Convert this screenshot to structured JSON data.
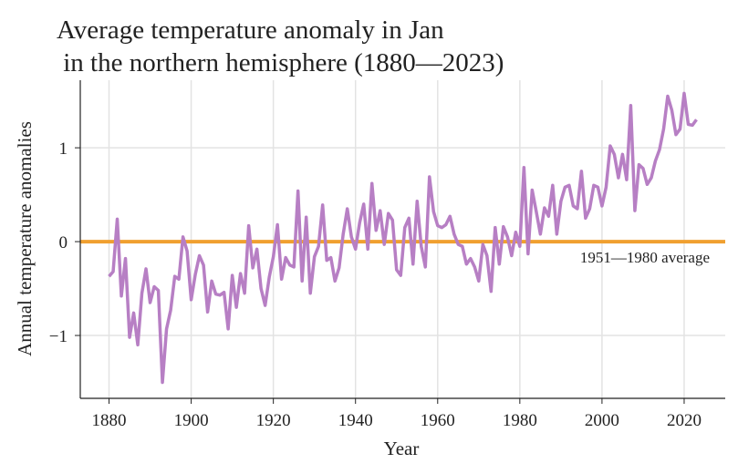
{
  "chart_data": {
    "type": "line",
    "title_lines": [
      "Average temperature anomaly in Jan",
      " in the northern hemisphere (1880—2023)"
    ],
    "xlabel": "Year",
    "ylabel": "Annual temperature anomalies",
    "xlim": [
      1873,
      2030
    ],
    "ylim": [
      -1.67,
      1.72
    ],
    "xticks": [
      1880,
      1900,
      1920,
      1940,
      1960,
      1980,
      2000,
      2020
    ],
    "yticks": [
      -1,
      0,
      1
    ],
    "ytick_labels": [
      "−1",
      "0",
      "1"
    ],
    "grid": true,
    "series": [
      {
        "color": "#b77fc4",
        "x_start": 1880,
        "x_end": 2023,
        "values": [
          -0.37,
          -0.32,
          0.24,
          -0.58,
          -0.18,
          -1.02,
          -0.76,
          -1.1,
          -0.55,
          -0.29,
          -0.65,
          -0.48,
          -0.52,
          -1.5,
          -0.93,
          -0.73,
          -0.37,
          -0.4,
          0.05,
          -0.1,
          -0.62,
          -0.35,
          -0.15,
          -0.25,
          -0.75,
          -0.42,
          -0.56,
          -0.57,
          -0.54,
          -0.93,
          -0.36,
          -0.7,
          -0.34,
          -0.55,
          0.17,
          -0.28,
          -0.08,
          -0.5,
          -0.68,
          -0.38,
          -0.16,
          0.18,
          -0.4,
          -0.17,
          -0.25,
          -0.27,
          0.54,
          -0.42,
          0.26,
          -0.55,
          -0.16,
          -0.05,
          0.39,
          -0.2,
          -0.17,
          -0.42,
          -0.28,
          0.08,
          0.35,
          0.05,
          -0.08,
          0.2,
          0.4,
          -0.08,
          0.62,
          0.12,
          0.33,
          -0.03,
          0.3,
          0.23,
          -0.3,
          -0.36,
          0.15,
          0.25,
          -0.24,
          0.43,
          -0.05,
          -0.27,
          0.69,
          0.32,
          0.17,
          0.15,
          0.18,
          0.27,
          0.08,
          -0.03,
          -0.05,
          -0.24,
          -0.18,
          -0.27,
          -0.42,
          -0.03,
          -0.15,
          -0.53,
          0.15,
          -0.24,
          0.16,
          0.05,
          -0.15,
          0.1,
          -0.05,
          0.79,
          -0.13,
          0.55,
          0.32,
          0.08,
          0.36,
          0.27,
          0.6,
          0.08,
          0.43,
          0.58,
          0.6,
          0.38,
          0.35,
          0.75,
          0.25,
          0.35,
          0.6,
          0.58,
          0.38,
          0.58,
          1.02,
          0.93,
          0.68,
          0.93,
          0.66,
          1.45,
          0.33,
          0.82,
          0.78,
          0.61,
          0.68,
          0.86,
          0.98,
          1.2,
          1.55,
          1.4,
          1.14,
          1.2,
          1.58,
          1.25,
          1.24,
          1.3
        ]
      }
    ],
    "reference_line": {
      "value": 0,
      "color": "#f0a030",
      "label": "1951—1980 average"
    }
  }
}
